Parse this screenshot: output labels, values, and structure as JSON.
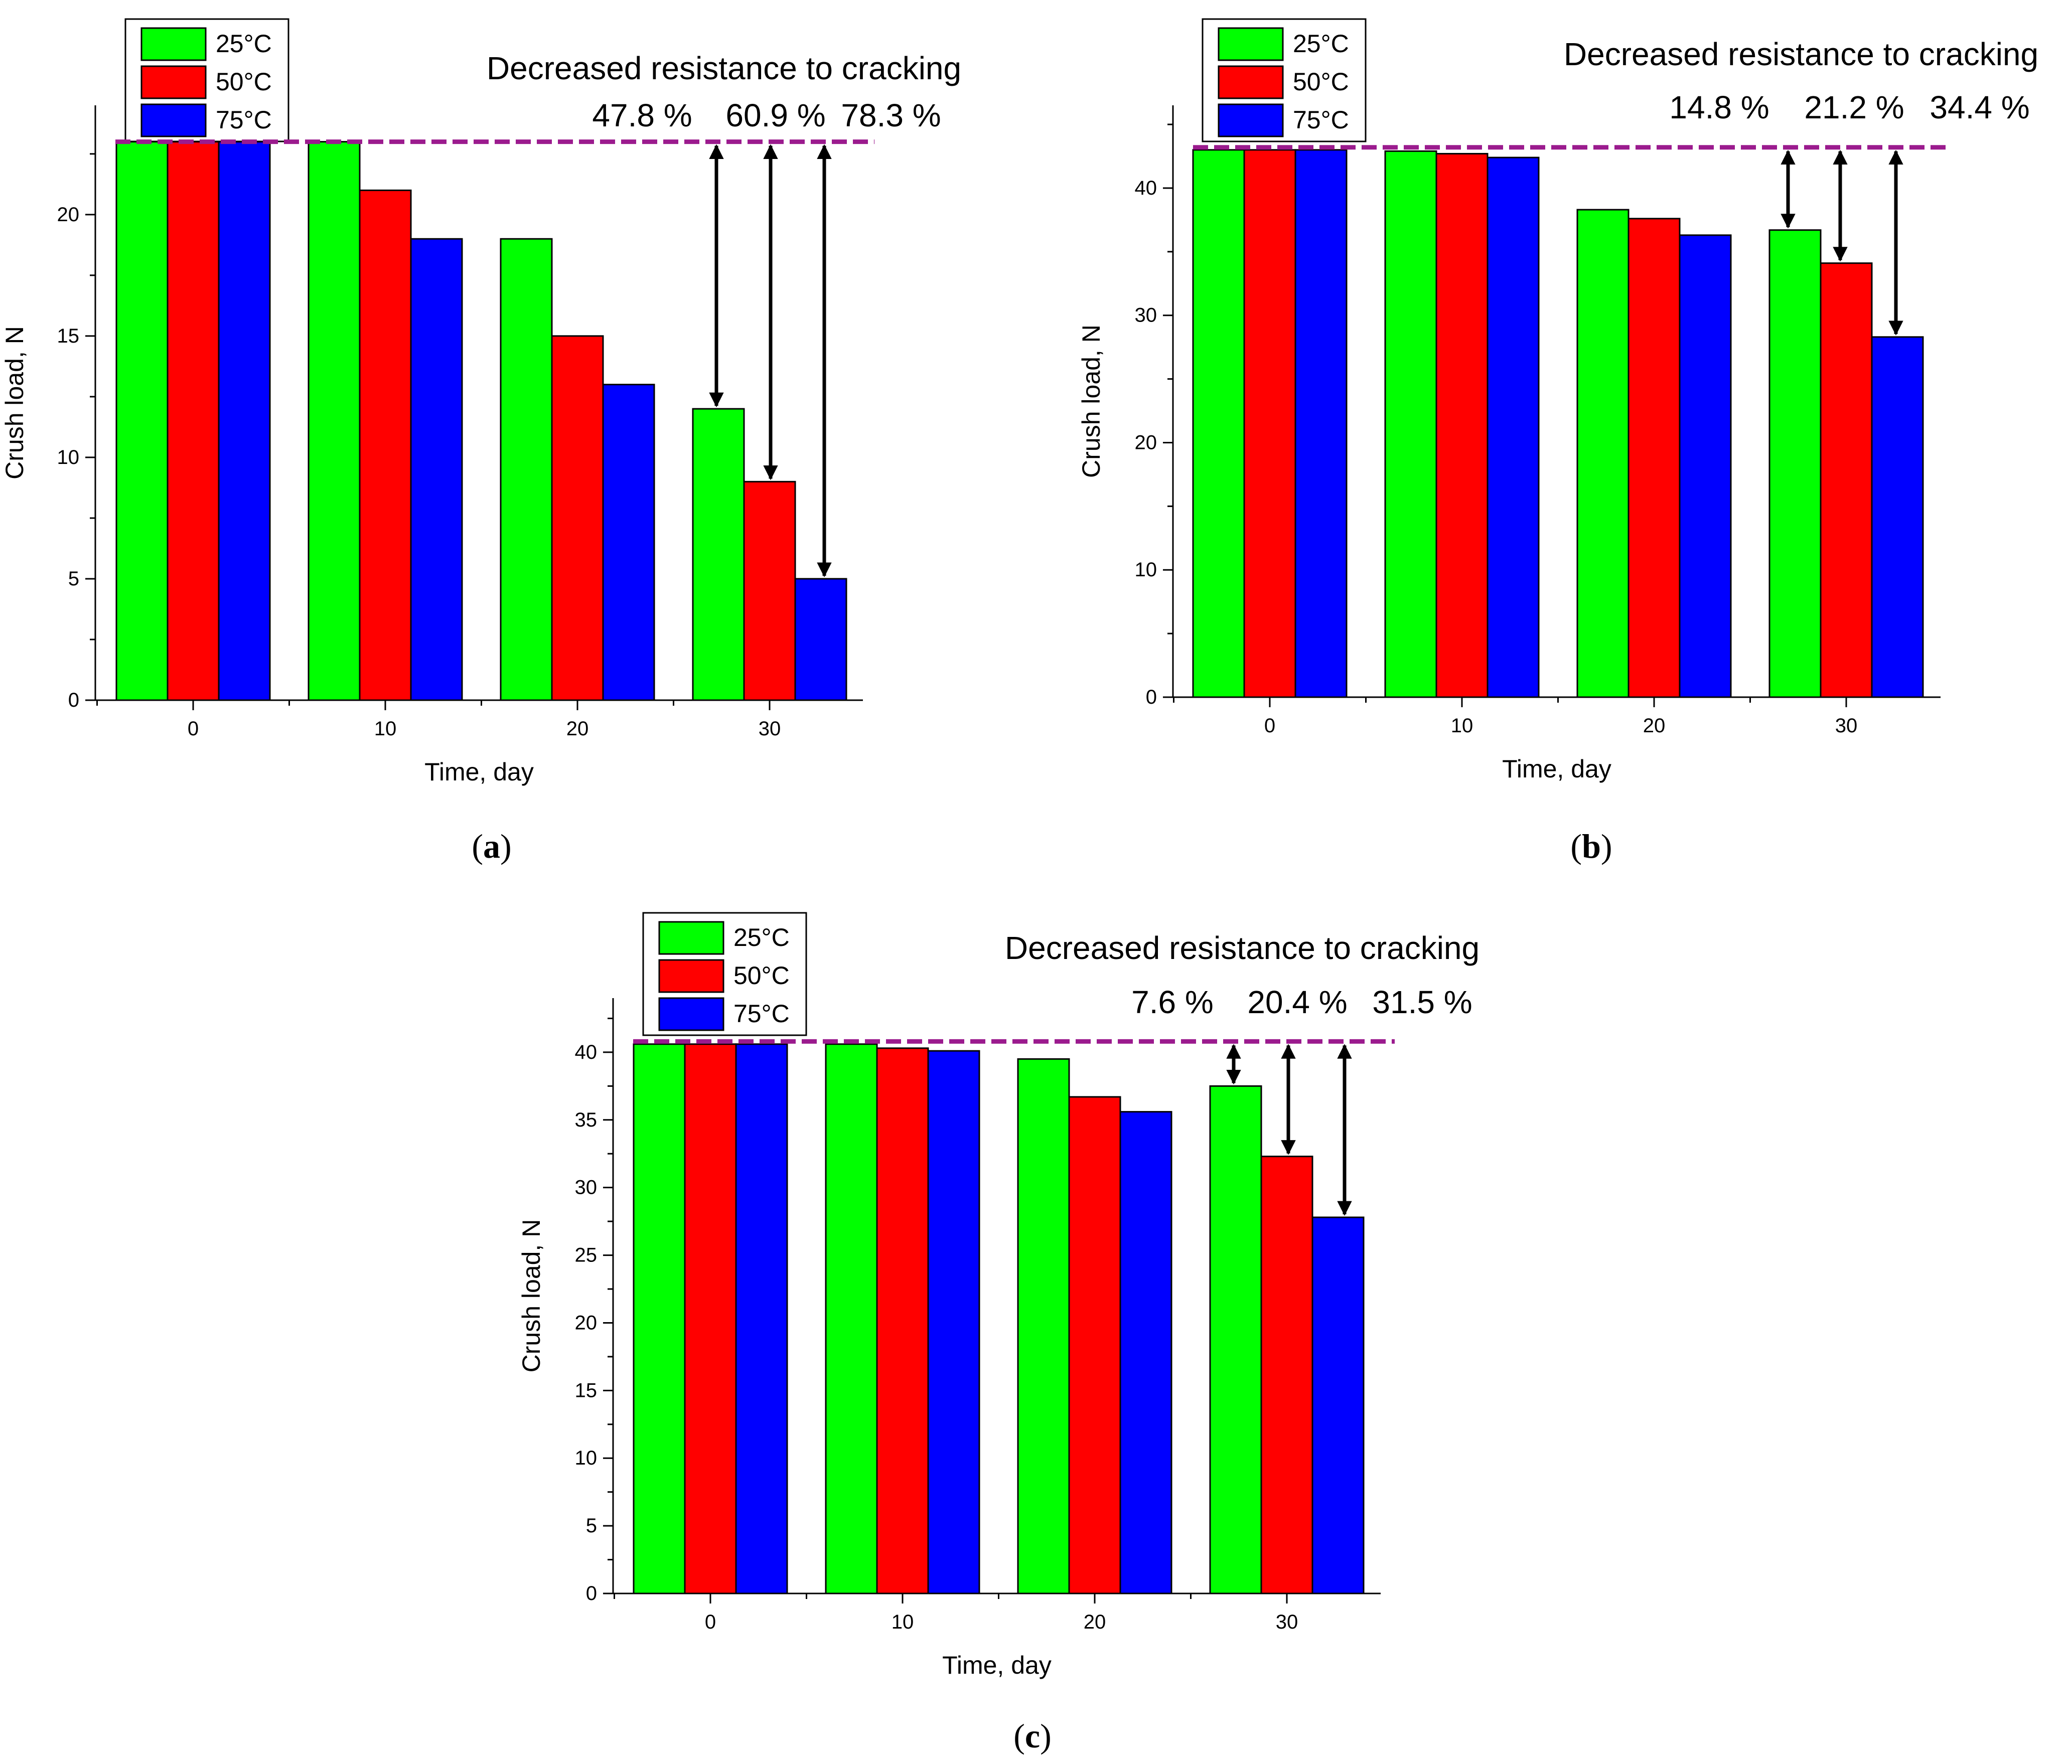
{
  "chart_data": [
    {
      "type": "bar",
      "panel_label": "(a)",
      "panel_letter": "a",
      "categories": [
        "0",
        "10",
        "20",
        "30"
      ],
      "series": [
        {
          "name": "25°C",
          "color": "#00ff00",
          "values": [
            23,
            23,
            19,
            12
          ]
        },
        {
          "name": "50°C",
          "color": "#ff0000",
          "values": [
            23,
            21,
            15,
            9
          ]
        },
        {
          "name": "75°C",
          "color": "#0000ff",
          "values": [
            23,
            19,
            13,
            5
          ]
        }
      ],
      "reference_line": {
        "value": 23,
        "color": "#9b1b8e"
      },
      "annotation_title": "Decreased resistance to cracking",
      "annotation_values": [
        "47.8 %",
        "60.9 %",
        "78.3 %"
      ],
      "xlabel": "Time, day",
      "ylabel": "Crush load, N",
      "ylim": [
        0,
        24.5
      ],
      "yticks": [
        0,
        5,
        10,
        15,
        20
      ]
    },
    {
      "type": "bar",
      "panel_label": "(b)",
      "panel_letter": "b",
      "categories": [
        "0",
        "10",
        "20",
        "30"
      ],
      "series": [
        {
          "name": "25°C",
          "color": "#00ff00",
          "values": [
            43,
            42.9,
            38.3,
            36.7
          ]
        },
        {
          "name": "50°C",
          "color": "#ff0000",
          "values": [
            43,
            42.7,
            37.6,
            34.1
          ]
        },
        {
          "name": "75°C",
          "color": "#0000ff",
          "values": [
            43,
            42.4,
            36.3,
            28.3
          ]
        }
      ],
      "reference_line": {
        "value": 43.2,
        "color": "#9b1b8e"
      },
      "annotation_title": "Decreased resistance to cracking",
      "annotation_values": [
        "14.8 %",
        "21.2 %",
        "34.4 %"
      ],
      "xlabel": "Time, day",
      "ylabel": "Crush load, N",
      "ylim": [
        0,
        46.5
      ],
      "yticks": [
        0,
        10,
        20,
        30,
        40
      ]
    },
    {
      "type": "bar",
      "panel_label": "(c)",
      "panel_letter": "c",
      "categories": [
        "0",
        "10",
        "20",
        "30"
      ],
      "series": [
        {
          "name": "25°C",
          "color": "#00ff00",
          "values": [
            40.6,
            40.6,
            39.5,
            37.5
          ]
        },
        {
          "name": "50°C",
          "color": "#ff0000",
          "values": [
            40.6,
            40.3,
            36.7,
            32.3
          ]
        },
        {
          "name": "75°C",
          "color": "#0000ff",
          "values": [
            40.6,
            40.1,
            35.6,
            27.8
          ]
        }
      ],
      "reference_line": {
        "value": 40.8,
        "color": "#9b1b8e"
      },
      "annotation_title": "Decreased resistance to cracking",
      "annotation_values": [
        "7.6 %",
        "20.4 %",
        "31.5 %"
      ],
      "xlabel": "Time, day",
      "ylabel": "Crush load, N",
      "ylim": [
        0,
        44
      ],
      "yticks": [
        0,
        5,
        10,
        15,
        20,
        25,
        30,
        35,
        40
      ]
    }
  ]
}
